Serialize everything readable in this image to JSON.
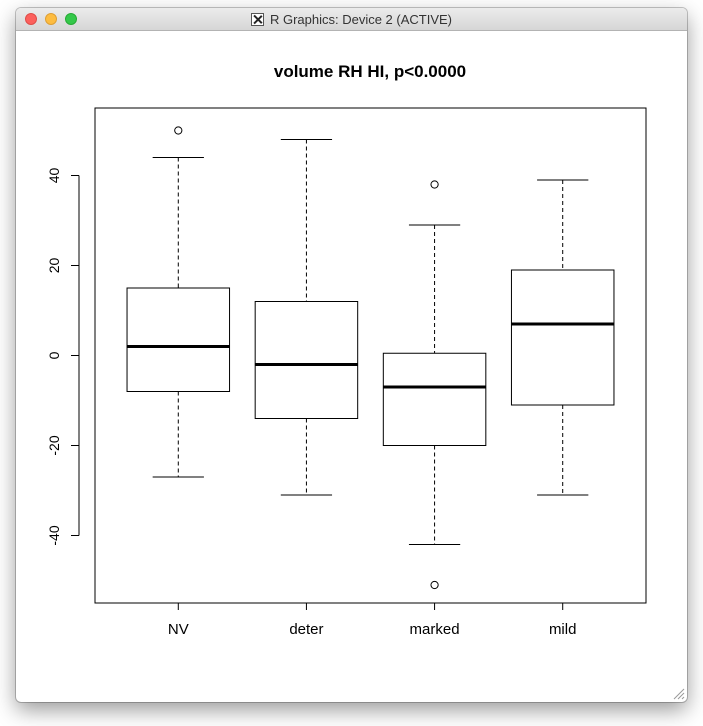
{
  "window": {
    "title": "R Graphics: Device 2 (ACTIVE)"
  },
  "chart_data": {
    "type": "boxplot",
    "title": "volume RH HI, p<0.0000",
    "xlabel": "",
    "ylabel": "",
    "ylim": [
      -55,
      55
    ],
    "yticks": [
      -40,
      -20,
      0,
      20,
      40
    ],
    "categories": [
      "NV",
      "deter",
      "marked",
      "mild"
    ],
    "boxes": [
      {
        "category": "NV",
        "whisker_low": -27,
        "q1": -8,
        "median": 2,
        "q3": 15,
        "whisker_high": 44,
        "outliers": [
          50
        ]
      },
      {
        "category": "deter",
        "whisker_low": -31,
        "q1": -14,
        "median": -2,
        "q3": 12,
        "whisker_high": 48,
        "outliers": []
      },
      {
        "category": "marked",
        "whisker_low": -42,
        "q1": -20,
        "median": -7,
        "q3": 0.5,
        "whisker_high": 29,
        "outliers": [
          38,
          -51
        ]
      },
      {
        "category": "mild",
        "whisker_low": -31,
        "q1": -11,
        "median": 7,
        "q3": 19,
        "whisker_high": 39,
        "outliers": []
      }
    ],
    "grid": false,
    "legend": "none"
  }
}
